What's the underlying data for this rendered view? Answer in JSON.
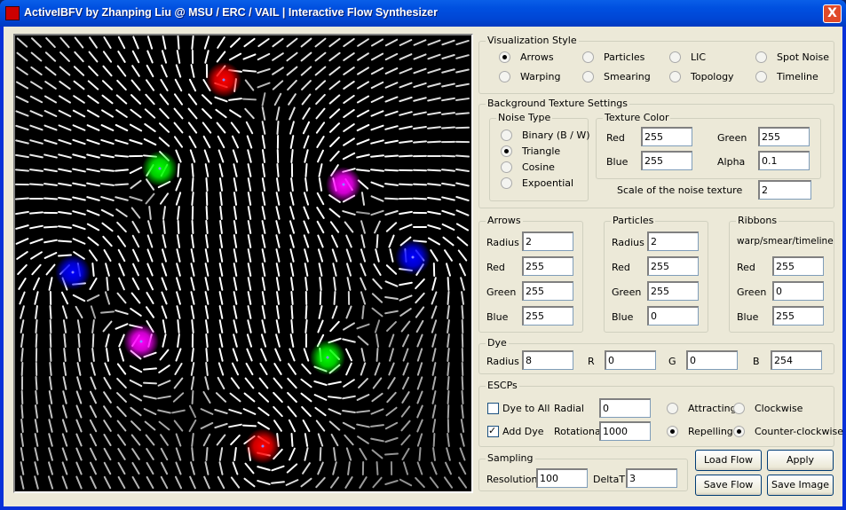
{
  "window": {
    "title": "ActiveIBFV by Zhanping Liu @ MSU / ERC / VAIL | Interactive Flow Synthesizer",
    "close": "X"
  },
  "flow": {
    "background": "#000000",
    "dyes": [
      "#ff0000",
      "#00ff00",
      "#ff00ff",
      "#0000ff",
      "#0000ff",
      "#ff00ff",
      "#00ff00",
      "#ff0000"
    ]
  },
  "vis_style": {
    "title": "Visualization Style",
    "options": [
      "Arrows",
      "Particles",
      "LIC",
      "Spot Noise",
      "Warping",
      "Smearing",
      "Topology",
      "Timeline"
    ],
    "selected": "Arrows"
  },
  "bg_texture": {
    "title": "Background Texture Settings",
    "noise_type": {
      "title": "Noise Type",
      "options": [
        "Binary (B / W)",
        "Triangle",
        "Cosine",
        "Expoential"
      ],
      "selected": "Triangle"
    },
    "texture_color": {
      "title": "Texture Color",
      "red_label": "Red",
      "red": "255",
      "green_label": "Green",
      "green": "255",
      "blue_label": "Blue",
      "blue": "255",
      "alpha_label": "Alpha",
      "alpha": "0.1"
    },
    "scale_label": "Scale of the noise texture",
    "scale": "2"
  },
  "arrows": {
    "title": "Arrows",
    "radius_label": "Radius",
    "radius": "2",
    "red_label": "Red",
    "red": "255",
    "green_label": "Green",
    "green": "255",
    "blue_label": "Blue",
    "blue": "255"
  },
  "particles": {
    "title": "Particles",
    "radius_label": "Radius",
    "radius": "2",
    "red_label": "Red",
    "red": "255",
    "green_label": "Green",
    "green": "255",
    "blue_label": "Blue",
    "blue": "0"
  },
  "ribbons": {
    "title": "Ribbons",
    "subtitle": "warp/smear/timeline",
    "red_label": "Red",
    "red": "255",
    "green_label": "Green",
    "green": "0",
    "blue_label": "Blue",
    "blue": "255"
  },
  "dye": {
    "title": "Dye",
    "radius_label": "Radius",
    "radius": "8",
    "r_label": "R",
    "r": "0",
    "g_label": "G",
    "g": "0",
    "b_label": "B",
    "b": "254"
  },
  "escps": {
    "title": "ESCPs",
    "dye_to_all": "Dye to All",
    "dye_to_all_checked": false,
    "add_dye": "Add Dye",
    "add_dye_checked": true,
    "radial_label": "Radial",
    "radial": "0",
    "rotational_label": "Rotational",
    "rotational": "1000",
    "attracting": "Attracting",
    "repelling": "Repelling",
    "radial_mode": "Repelling",
    "clockwise": "Clockwise",
    "counter_clockwise": "Counter-clockwise",
    "rotation_mode": "Counter-clockwise"
  },
  "sampling": {
    "title": "Sampling",
    "resolution_label": "Resolution",
    "resolution": "100",
    "deltat_label": "DeltaT",
    "deltat": "3"
  },
  "buttons": {
    "load_flow": "Load Flow",
    "apply": "Apply",
    "save_flow": "Save Flow",
    "save_image": "Save Image"
  }
}
